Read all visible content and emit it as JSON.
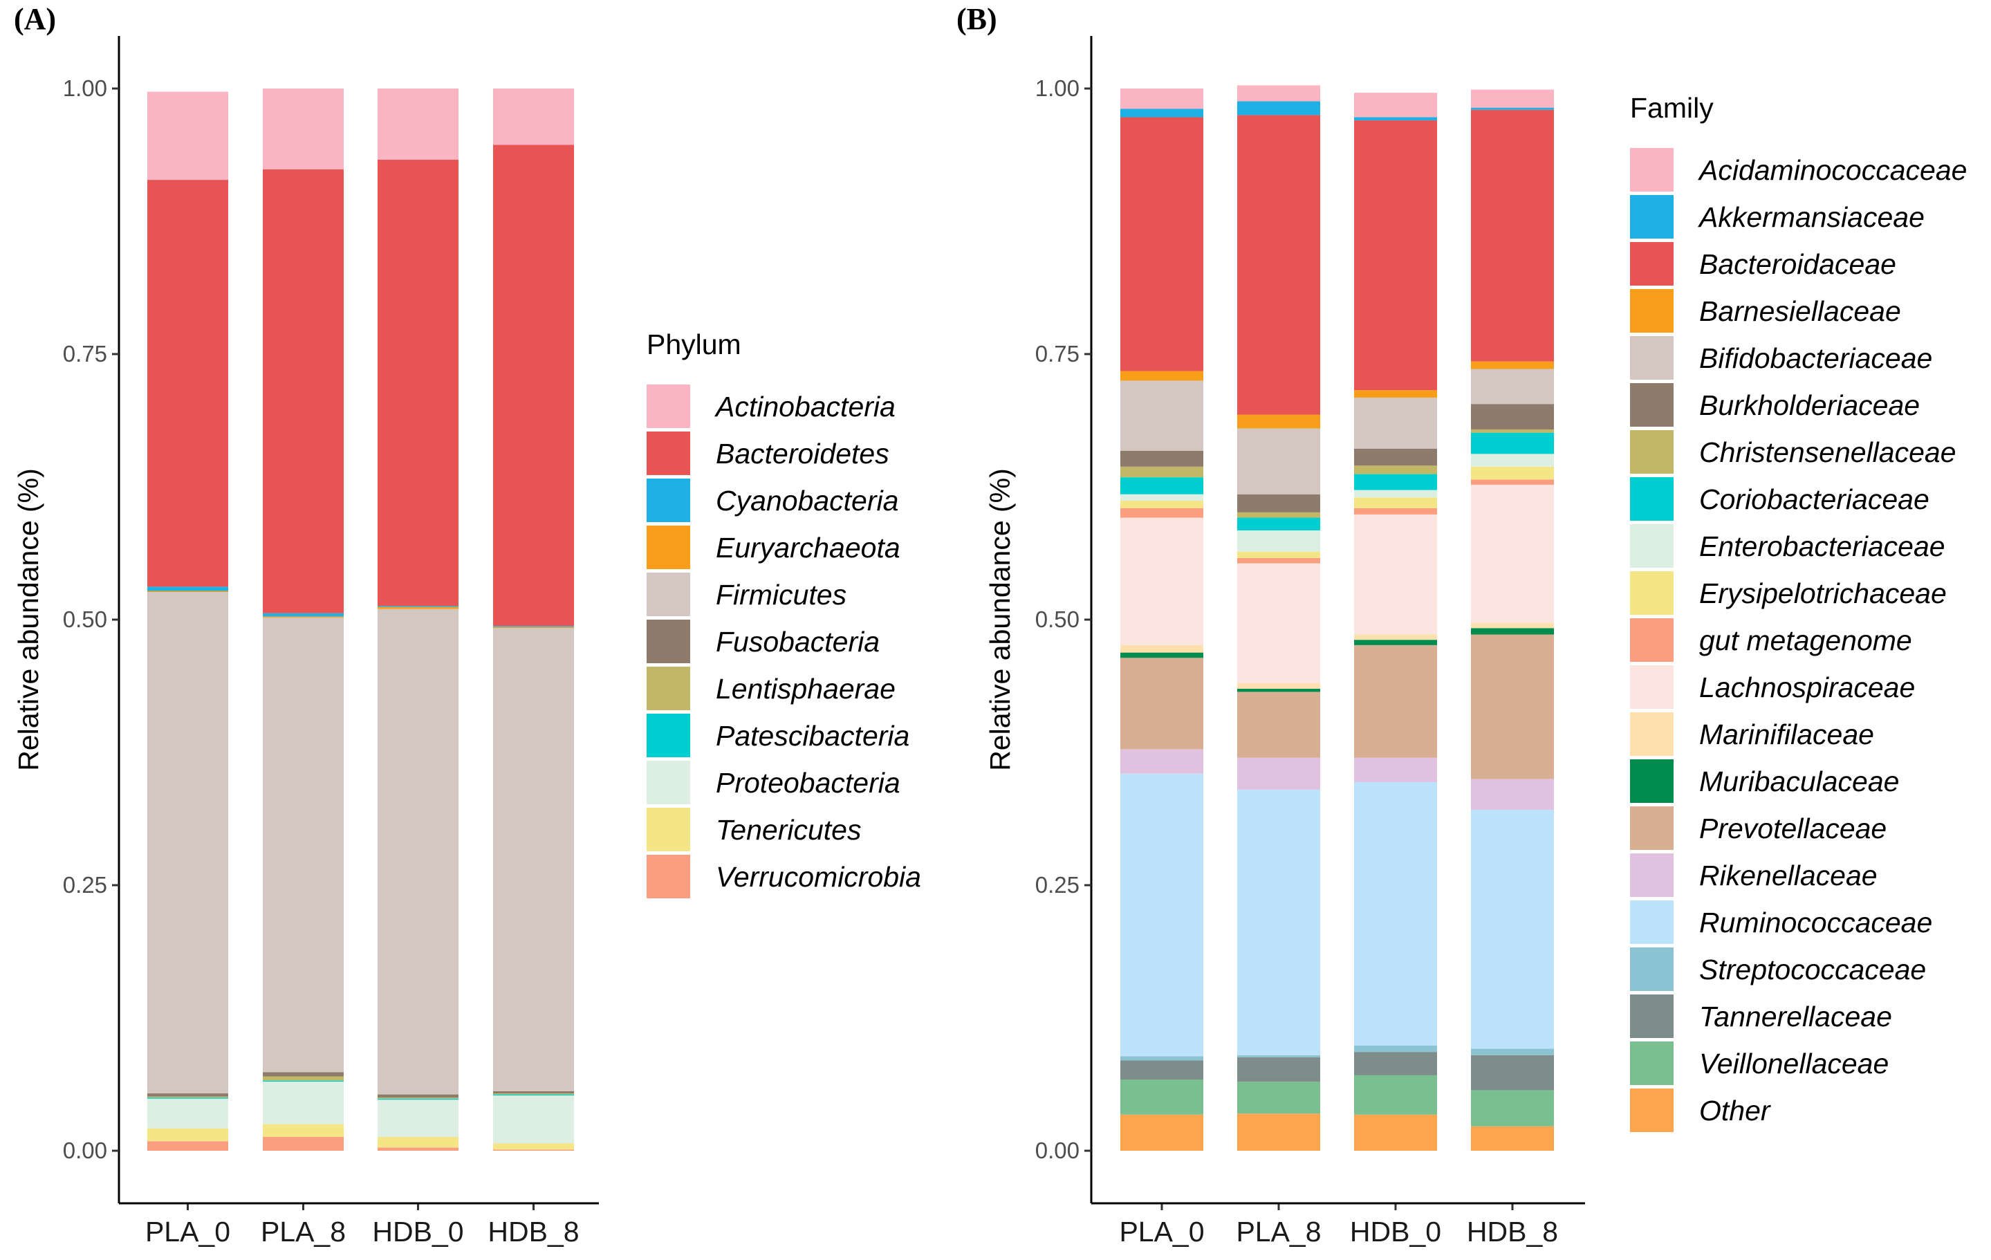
{
  "chart_data": [
    {
      "type": "bar",
      "stacked": true,
      "panel_label": "(A)",
      "ylabel": "Relative abundance (%)",
      "ylim": [
        0,
        1
      ],
      "yticks": [
        "0.00",
        "0.25",
        "0.50",
        "0.75",
        "1.00"
      ],
      "categories": [
        "PLA_0",
        "PLA_8",
        "HDB_0",
        "HDB_8"
      ],
      "legend_title": "Phylum",
      "series": [
        {
          "name": "Actinobacteria",
          "color": "#FBB4C1",
          "values": [
            0.083,
            0.076,
            0.067,
            0.053
          ]
        },
        {
          "name": "Bacteroidetes",
          "color": "#E85454",
          "values": [
            0.383,
            0.418,
            0.42,
            0.453
          ]
        },
        {
          "name": "Cyanobacteria",
          "color": "#1FB1E6",
          "values": [
            0.004,
            0.003,
            0.001,
            0.001
          ]
        },
        {
          "name": "Euryarchaeota",
          "color": "#F89E1A",
          "values": [
            0.001,
            0.001,
            0.002,
            0.001
          ]
        },
        {
          "name": "Firmicutes",
          "color": "#D4C7C2",
          "values": [
            0.472,
            0.428,
            0.457,
            0.436
          ]
        },
        {
          "name": "Fusobacteria",
          "color": "#8E7B6B",
          "values": [
            0.003,
            0.004,
            0.003,
            0.002
          ]
        },
        {
          "name": "Lentisphaerae",
          "color": "#C2B767",
          "values": [
            0.001,
            0.004,
            0.001,
            0.001
          ]
        },
        {
          "name": "Patescibacteria",
          "color": "#00CED1",
          "values": [
            0.001,
            0.001,
            0.001,
            0.001
          ]
        },
        {
          "name": "Proteobacteria",
          "color": "#DCEFE2",
          "values": [
            0.028,
            0.04,
            0.035,
            0.045
          ]
        },
        {
          "name": "Tenericutes",
          "color": "#F4E687",
          "values": [
            0.012,
            0.012,
            0.01,
            0.006
          ]
        },
        {
          "name": "Verrucomicrobia",
          "color": "#FB9E80",
          "values": [
            0.009,
            0.013,
            0.003,
            0.001
          ]
        }
      ]
    },
    {
      "type": "bar",
      "stacked": true,
      "panel_label": "(B)",
      "ylabel": "Relative abundance (%)",
      "ylim": [
        0,
        1
      ],
      "yticks": [
        "0.00",
        "0.25",
        "0.50",
        "0.75",
        "1.00"
      ],
      "categories": [
        "PLA_0",
        "PLA_8",
        "HDB_0",
        "HDB_8"
      ],
      "legend_title": "Family",
      "series": [
        {
          "name": "Acidaminococcaceae",
          "color": "#FBB4C1",
          "values": [
            0.019,
            0.015,
            0.023,
            0.017
          ]
        },
        {
          "name": "Akkermansiaceae",
          "color": "#1FB1E6",
          "values": [
            0.008,
            0.013,
            0.003,
            0.002
          ]
        },
        {
          "name": "Bacteroidaceae",
          "color": "#E85454",
          "values": [
            0.239,
            0.282,
            0.254,
            0.237
          ]
        },
        {
          "name": "Barnesiellaceae",
          "color": "#F89E1A",
          "values": [
            0.009,
            0.013,
            0.007,
            0.007
          ]
        },
        {
          "name": "Bifidobacteriaceae",
          "color": "#D4C7C2",
          "values": [
            0.066,
            0.062,
            0.048,
            0.033
          ]
        },
        {
          "name": "Burkholderiaceae",
          "color": "#8E7B6B",
          "values": [
            0.015,
            0.017,
            0.016,
            0.024
          ]
        },
        {
          "name": "Christensenellaceae",
          "color": "#C2B767",
          "values": [
            0.01,
            0.005,
            0.008,
            0.003
          ]
        },
        {
          "name": "Coriobacteriaceae",
          "color": "#00CED1",
          "values": [
            0.016,
            0.012,
            0.015,
            0.02
          ]
        },
        {
          "name": "Enterobacteriaceae",
          "color": "#DCEFE2",
          "values": [
            0.006,
            0.02,
            0.007,
            0.012
          ]
        },
        {
          "name": "Erysipelotrichaceae",
          "color": "#F4E687",
          "values": [
            0.007,
            0.006,
            0.01,
            0.012
          ]
        },
        {
          "name": "gut metagenome",
          "color": "#FB9E80",
          "values": [
            0.009,
            0.005,
            0.006,
            0.005
          ]
        },
        {
          "name": "Lachnospiraceae",
          "color": "#FCE4E0",
          "values": [
            0.12,
            0.113,
            0.113,
            0.13
          ]
        },
        {
          "name": "Marinifilaceae",
          "color": "#FDE0AE",
          "values": [
            0.007,
            0.005,
            0.005,
            0.005
          ]
        },
        {
          "name": "Muribaculaceae",
          "color": "#008C4F",
          "values": [
            0.005,
            0.003,
            0.005,
            0.006
          ]
        },
        {
          "name": "Prevotellaceae",
          "color": "#D9AF93",
          "values": [
            0.086,
            0.062,
            0.106,
            0.136
          ]
        },
        {
          "name": "Rikenellaceae",
          "color": "#E0C1DF",
          "values": [
            0.023,
            0.03,
            0.023,
            0.029
          ]
        },
        {
          "name": "Ruminococcaceae",
          "color": "#BDE2FC",
          "values": [
            0.266,
            0.25,
            0.248,
            0.225
          ]
        },
        {
          "name": "Streptococcaceae",
          "color": "#8CC3D2",
          "values": [
            0.004,
            0.002,
            0.006,
            0.006
          ]
        },
        {
          "name": "Tannerellaceae",
          "color": "#7F8C8C",
          "values": [
            0.018,
            0.023,
            0.022,
            0.033
          ]
        },
        {
          "name": "Veillonellaceae",
          "color": "#79BF8F",
          "values": [
            0.033,
            0.03,
            0.037,
            0.034
          ]
        },
        {
          "name": "Other",
          "color": "#FBA54F",
          "values": [
            0.034,
            0.035,
            0.034,
            0.023
          ]
        }
      ]
    }
  ]
}
